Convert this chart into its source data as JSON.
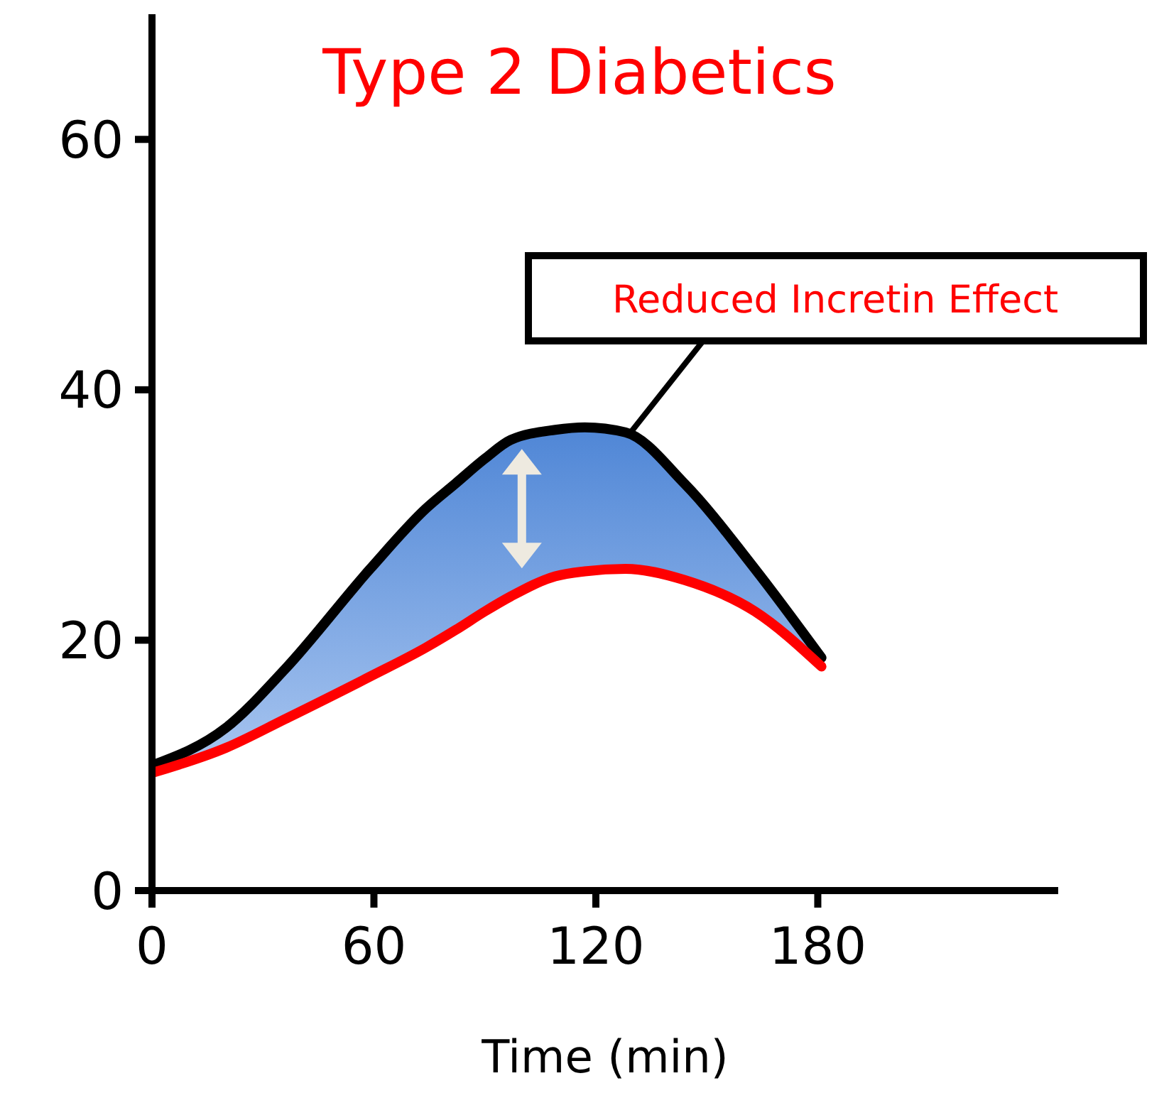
{
  "chart_data": {
    "type": "line",
    "title": "Type 2 Diabetics",
    "xlabel": "Time (min)",
    "x": [
      0,
      20,
      36,
      59,
      74,
      82,
      90,
      97,
      109,
      117,
      128,
      144,
      163,
      181
    ],
    "series": [
      {
        "color": "#000000",
        "values": [
          10,
          13,
          17.7,
          25.7,
          30.5,
          32.5,
          34.5,
          36,
          36.8,
          37,
          36.6,
          32.5,
          25.7,
          18.6
        ],
        "lower": [
          9.4,
          11.4,
          13.7,
          17.1,
          19.4,
          20.8,
          22.3,
          23.5,
          25.1,
          25.5,
          25.7,
          24.8,
          22.3,
          17.9
        ],
        "upper": [
          10,
          13,
          17.7,
          25.7,
          30.5,
          32.5,
          34.5,
          36,
          36.8,
          37,
          36.6,
          32.5,
          25.7,
          18.6
        ]
      },
      {
        "color": "#ff0000",
        "values": [
          9.4,
          11.4,
          13.7,
          17.1,
          19.4,
          20.8,
          22.3,
          23.5,
          25.1,
          25.5,
          25.7,
          24.8,
          22.3,
          17.9
        ]
      }
    ],
    "xlim": [
      0,
      245
    ],
    "xticks": [
      0,
      60,
      120,
      180
    ],
    "ylim": [
      0,
      70
    ],
    "yticks": [
      0,
      20,
      40,
      60
    ],
    "grid": false,
    "marker": "none",
    "line_style": "solid",
    "annotations": [
      "Reduced Incretin Effect"
    ]
  }
}
